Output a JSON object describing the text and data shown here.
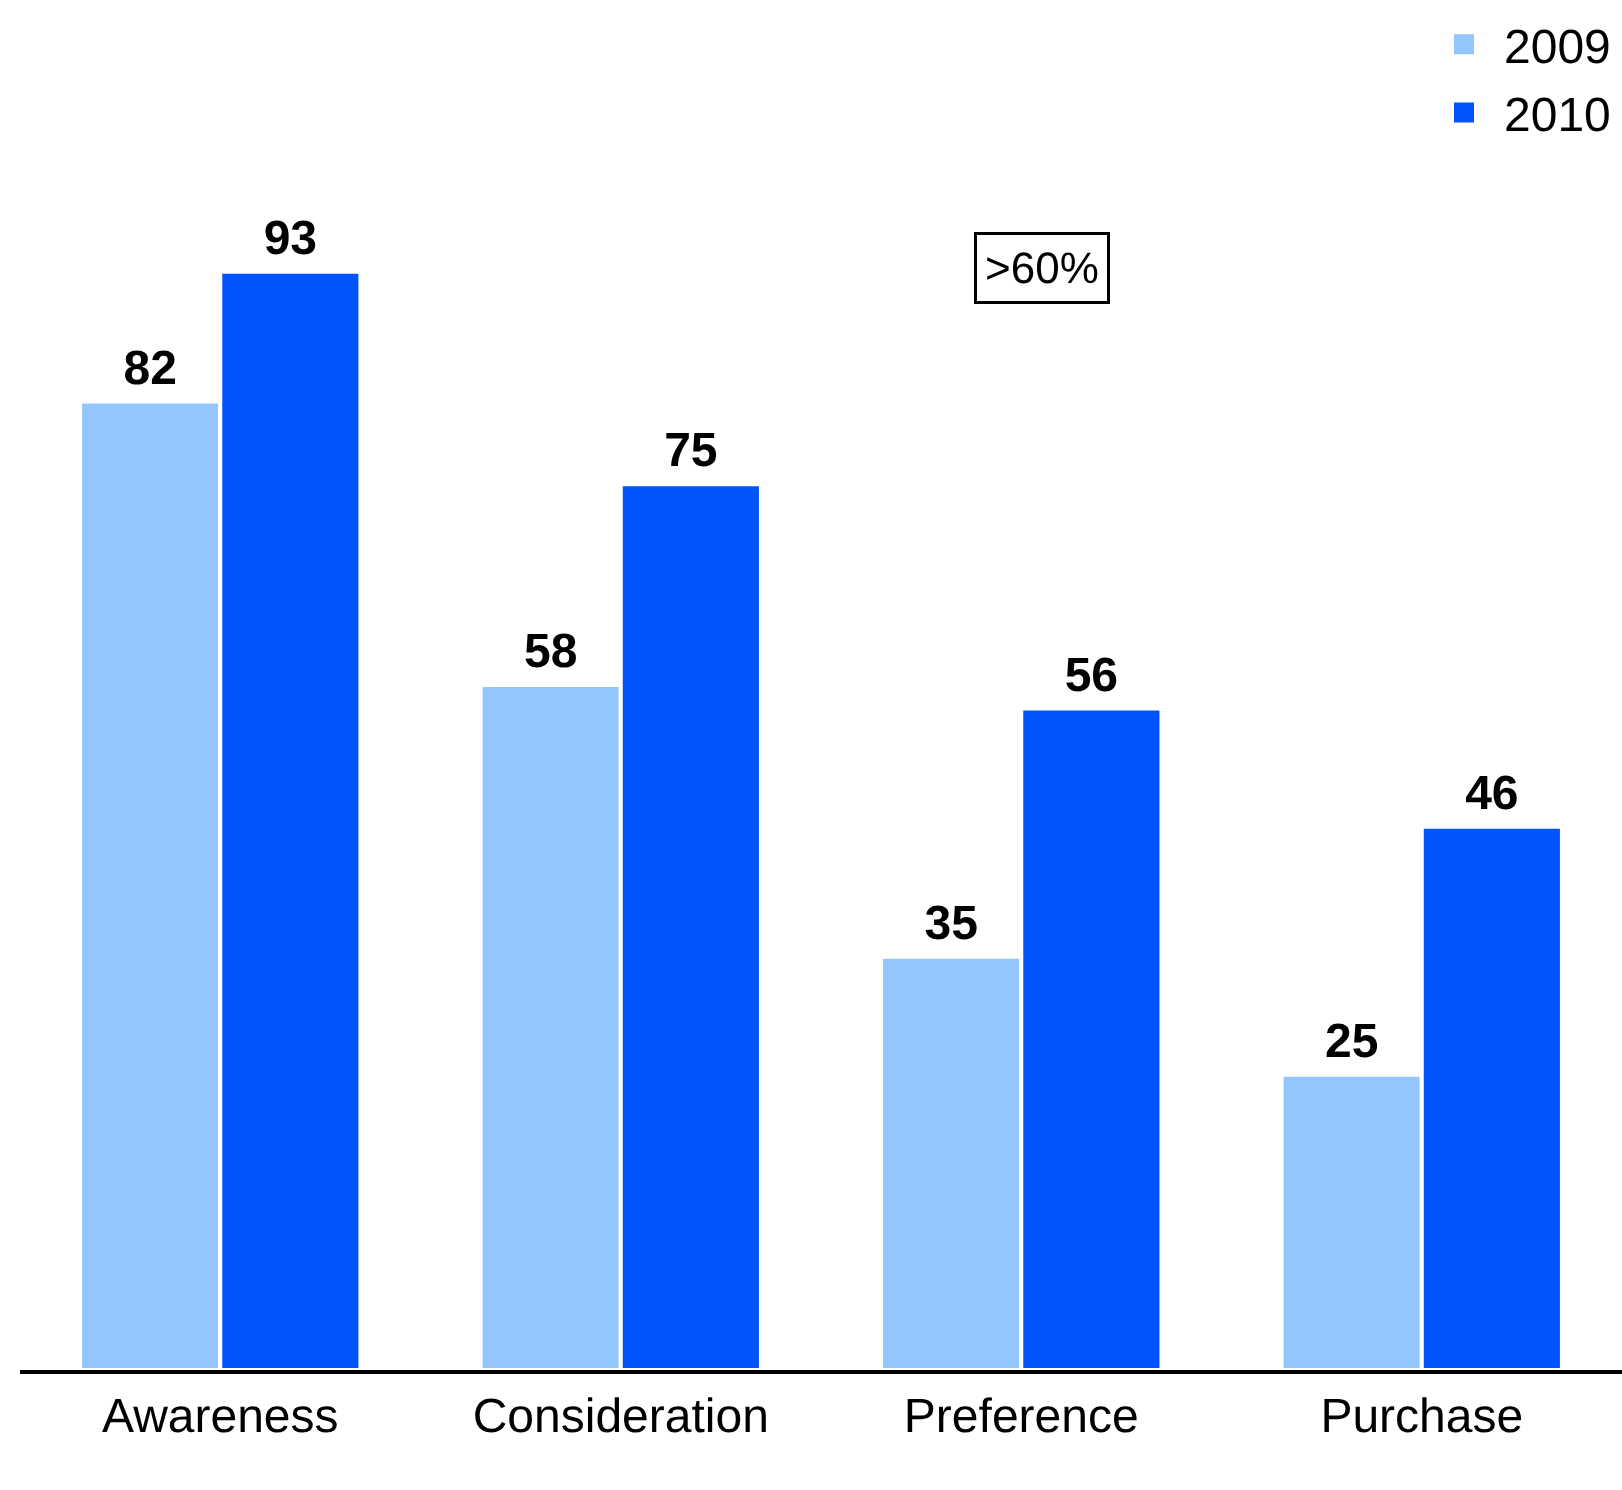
{
  "chart_data": {
    "type": "bar",
    "categories": [
      "Awareness",
      "Consideration",
      "Preference",
      "Purchase"
    ],
    "series": [
      {
        "name": "2009",
        "color": "#93c6fc",
        "values": [
          82,
          58,
          35,
          25
        ]
      },
      {
        "name": "2010",
        "color": "#0055fa",
        "values": [
          93,
          75,
          56,
          46
        ]
      }
    ],
    "ylim": [
      0,
      116
    ],
    "data_labels": true,
    "tick_labels": "x",
    "legend": "top right",
    "annotations": [
      ">60%"
    ]
  }
}
